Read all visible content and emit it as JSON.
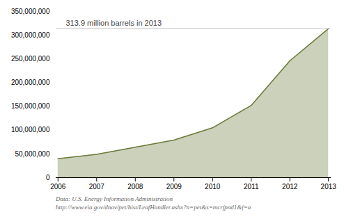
{
  "chart_data": {
    "type": "area",
    "x": [
      2006,
      2007,
      2008,
      2009,
      2010,
      2011,
      2012,
      2013
    ],
    "values": [
      40000000,
      49000000,
      64000000,
      79000000,
      105000000,
      152000000,
      246000000,
      313900000
    ],
    "color": "#6b7a3a",
    "xlim": [
      2005.95,
      2013.05
    ],
    "xticks": [
      2006,
      2007,
      2008,
      2009,
      2010,
      2011,
      2012,
      2013
    ],
    "ylim": [
      0,
      350000000
    ],
    "yticks": [
      0,
      {
        "value": 50000000,
        "label": "50,000,000"
      },
      {
        "value": 100000000,
        "label": "100,000,000"
      },
      {
        "value": 150000000,
        "label": "150,000,000"
      },
      {
        "value": 200000000,
        "label": "200,000,000"
      },
      {
        "value": 250000000,
        "label": "250,000,000"
      },
      {
        "value": 300000000,
        "label": "300,000,000"
      },
      {
        "value": 350000000,
        "label": "350,000,000"
      }
    ],
    "annotations": [
      {
        "text": "313.9 million barrels in 2013",
        "y": 313900000
      }
    ],
    "caption": "Data: U.S. Energy Information Administration\nhttp://www.eia.gov/dnav/pet/hist/LeafHandler.ashx?n=pet&s=mcrfpnd1&f=a",
    "grid": false
  }
}
